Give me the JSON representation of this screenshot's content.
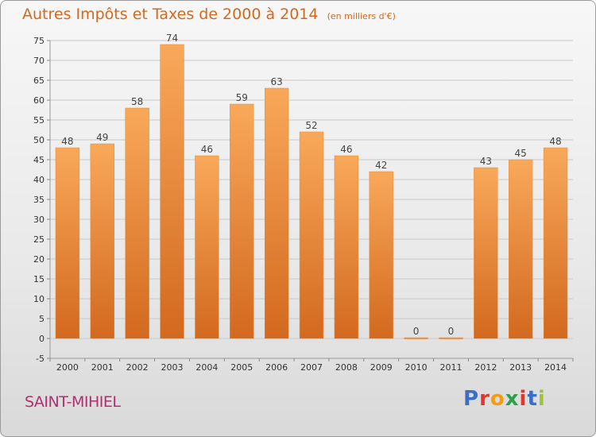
{
  "title": "Autres Impôts et Taxes de 2000 à 2014",
  "subtitle": "(en milliers d'€)",
  "location": "SAINT-MIHIEL",
  "brand": {
    "text": "Proxiti",
    "letter_colors": [
      "#3a6fc4",
      "#e3342f",
      "#f39c12",
      "#2e9f4a",
      "#e3342f",
      "#3a6fc4",
      "#9bc53d"
    ]
  },
  "colors": {
    "bar_top": "#f9a85a",
    "bar_bottom": "#d2691e",
    "title": "#d2691e",
    "location": "#b03070"
  },
  "chart_data": {
    "type": "bar",
    "categories": [
      "2000",
      "2001",
      "2002",
      "2003",
      "2004",
      "2005",
      "2006",
      "2007",
      "2008",
      "2009",
      "2010",
      "2011",
      "2012",
      "2013",
      "2014"
    ],
    "values": [
      48,
      49,
      58,
      74,
      46,
      59,
      63,
      52,
      46,
      42,
      0,
      0,
      43,
      45,
      48
    ],
    "ylim": [
      -5,
      75
    ],
    "yticks": [
      -5,
      0,
      5,
      10,
      15,
      20,
      25,
      30,
      35,
      40,
      45,
      50,
      55,
      60,
      65,
      70,
      75
    ],
    "grid": true,
    "xlabel": "",
    "ylabel": ""
  }
}
